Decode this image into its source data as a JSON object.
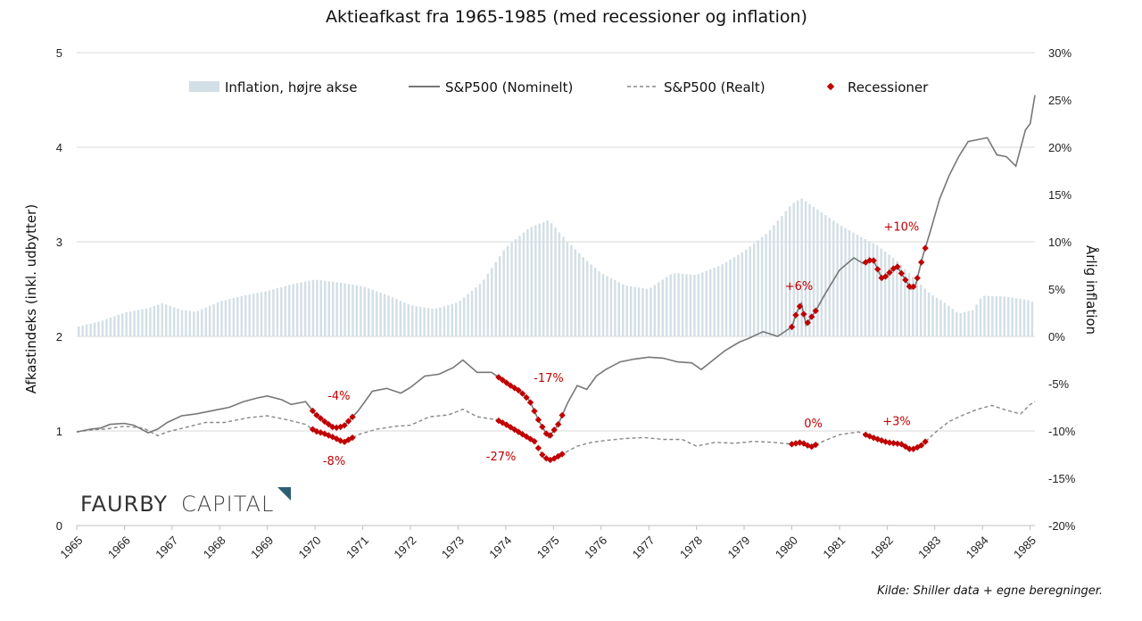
{
  "chart_data": {
    "type": "line",
    "title": "Aktieafkast fra 1965-1985 (med recessioner og inflation)",
    "ylabel_left": "Afkastindeks (inkl. udbytter)",
    "ylabel_right": "Årlig inflation",
    "ylim_left": [
      0,
      5
    ],
    "ylim_right": [
      -20,
      30
    ],
    "xlim": [
      1965,
      1985.1
    ],
    "x_ticks": [
      "1965",
      "1966",
      "1967",
      "1968",
      "1969",
      "1970",
      "1971",
      "1972",
      "1973",
      "1974",
      "1975",
      "1976",
      "1977",
      "1978",
      "1979",
      "1980",
      "1981",
      "1982",
      "1983",
      "1984",
      "1985"
    ],
    "y_left_ticks": [
      "0",
      "1",
      "2",
      "3",
      "4",
      "5"
    ],
    "y_right_ticks": [
      "-20%",
      "-15%",
      "-10%",
      "-5%",
      "0%",
      "5%",
      "10%",
      "15%",
      "20%",
      "25%",
      "30%"
    ],
    "grid": "horizontal",
    "legend_position": "top",
    "legend": [
      {
        "label": "Inflation, højre akse",
        "kind": "bar"
      },
      {
        "label": "S&P500 (Nominelt)",
        "kind": "line"
      },
      {
        "label": "S&P500 (Realt)",
        "kind": "dashed"
      },
      {
        "label": "Recessioner",
        "kind": "marker"
      }
    ],
    "colors": {
      "inflation": "#d3dfe6",
      "nominal": "#777777",
      "real": "#888888",
      "recession": "#c00000"
    },
    "inflation": {
      "x": [
        1965.0,
        1965.5,
        1966.0,
        1966.5,
        1966.8,
        1967.2,
        1967.5,
        1968.0,
        1968.5,
        1969.0,
        1969.5,
        1970.0,
        1970.5,
        1971.0,
        1971.5,
        1972.0,
        1972.5,
        1973.0,
        1973.5,
        1974.0,
        1974.5,
        1974.9,
        1975.3,
        1975.7,
        1976.0,
        1976.5,
        1977.0,
        1977.5,
        1978.0,
        1978.5,
        1979.0,
        1979.5,
        1980.0,
        1980.2,
        1980.6,
        1981.0,
        1981.5,
        1981.8,
        1982.2,
        1982.5,
        1982.9,
        1983.2,
        1983.5,
        1983.8,
        1984.0,
        1984.5,
        1985.0,
        1985.1
      ],
      "values": [
        1.0,
        1.6,
        2.5,
        3.0,
        3.5,
        2.8,
        2.6,
        3.7,
        4.3,
        4.8,
        5.5,
        6.0,
        5.7,
        5.3,
        4.4,
        3.3,
        2.9,
        3.6,
        5.7,
        9.4,
        11.5,
        12.3,
        10.0,
        8.0,
        6.7,
        5.4,
        5.0,
        6.7,
        6.5,
        7.5,
        9.0,
        11.0,
        14.0,
        14.6,
        13.2,
        11.8,
        10.4,
        9.6,
        8.0,
        6.5,
        4.5,
        3.6,
        2.4,
        2.8,
        4.3,
        4.2,
        3.8,
        3.5
      ]
    },
    "nominal": {
      "x": [
        1965.0,
        1965.3,
        1965.5,
        1965.7,
        1966.0,
        1966.2,
        1966.5,
        1966.7,
        1966.9,
        1967.2,
        1967.5,
        1967.9,
        1968.2,
        1968.5,
        1968.8,
        1969.0,
        1969.3,
        1969.5,
        1969.8,
        1970.0,
        1970.2,
        1970.4,
        1970.6,
        1970.9,
        1971.2,
        1971.5,
        1971.8,
        1972.0,
        1972.3,
        1972.6,
        1972.9,
        1973.1,
        1973.4,
        1973.7,
        1973.9,
        1974.1,
        1974.3,
        1974.5,
        1974.7,
        1974.9,
        1975.1,
        1975.3,
        1975.5,
        1975.7,
        1975.9,
        1976.1,
        1976.4,
        1976.7,
        1977.0,
        1977.3,
        1977.6,
        1977.9,
        1978.1,
        1978.3,
        1978.6,
        1978.9,
        1979.1,
        1979.4,
        1979.7,
        1980.0,
        1980.1,
        1980.2,
        1980.3,
        1980.5,
        1980.7,
        1981.0,
        1981.3,
        1981.5,
        1981.7,
        1981.9,
        1982.2,
        1982.5,
        1982.6,
        1982.75,
        1982.9,
        1983.1,
        1983.3,
        1983.5,
        1983.7,
        1983.9,
        1984.1,
        1984.3,
        1984.5,
        1984.7,
        1984.9,
        1985.0,
        1985.1
      ],
      "values": [
        0.99,
        1.02,
        1.03,
        1.07,
        1.08,
        1.06,
        0.98,
        1.02,
        1.09,
        1.16,
        1.18,
        1.22,
        1.25,
        1.31,
        1.35,
        1.37,
        1.33,
        1.28,
        1.31,
        1.18,
        1.1,
        1.03,
        1.05,
        1.21,
        1.42,
        1.45,
        1.4,
        1.46,
        1.58,
        1.6,
        1.67,
        1.75,
        1.62,
        1.62,
        1.55,
        1.48,
        1.42,
        1.32,
        1.1,
        0.93,
        1.07,
        1.3,
        1.48,
        1.44,
        1.58,
        1.65,
        1.73,
        1.76,
        1.78,
        1.77,
        1.73,
        1.72,
        1.65,
        1.73,
        1.85,
        1.94,
        1.98,
        2.05,
        2.0,
        2.1,
        2.25,
        2.35,
        2.12,
        2.27,
        2.45,
        2.7,
        2.83,
        2.77,
        2.82,
        2.6,
        2.75,
        2.5,
        2.55,
        2.85,
        3.1,
        3.45,
        3.7,
        3.9,
        4.06,
        4.08,
        4.1,
        3.92,
        3.9,
        3.8,
        4.18,
        4.25,
        4.55
      ]
    },
    "real": {
      "x": [
        1965.0,
        1965.3,
        1965.6,
        1966.0,
        1966.4,
        1966.7,
        1966.9,
        1967.3,
        1967.7,
        1968.1,
        1968.6,
        1969.0,
        1969.4,
        1969.8,
        1970.0,
        1970.2,
        1970.4,
        1970.6,
        1970.9,
        1971.3,
        1971.7,
        1972.0,
        1972.4,
        1972.8,
        1973.1,
        1973.4,
        1973.8,
        1974.0,
        1974.3,
        1974.6,
        1974.8,
        1974.95,
        1975.2,
        1975.5,
        1975.8,
        1976.1,
        1976.5,
        1976.9,
        1977.3,
        1977.7,
        1978.0,
        1978.4,
        1978.8,
        1979.2,
        1979.6,
        1980.0,
        1980.2,
        1980.4,
        1980.7,
        1981.0,
        1981.4,
        1981.7,
        1982.0,
        1982.3,
        1982.5,
        1982.7,
        1983.0,
        1983.3,
        1983.6,
        1983.9,
        1984.2,
        1984.5,
        1984.8,
        1985.0,
        1985.1
      ],
      "values": [
        0.99,
        1.01,
        1.02,
        1.05,
        1.03,
        0.95,
        0.99,
        1.04,
        1.09,
        1.09,
        1.14,
        1.16,
        1.12,
        1.07,
        1.0,
        0.97,
        0.93,
        0.88,
        0.96,
        1.02,
        1.05,
        1.06,
        1.15,
        1.17,
        1.23,
        1.15,
        1.12,
        1.07,
        0.98,
        0.89,
        0.72,
        0.69,
        0.76,
        0.84,
        0.88,
        0.9,
        0.92,
        0.93,
        0.91,
        0.91,
        0.84,
        0.88,
        0.87,
        0.89,
        0.88,
        0.86,
        0.88,
        0.83,
        0.9,
        0.96,
        0.99,
        0.93,
        0.88,
        0.86,
        0.8,
        0.84,
        0.98,
        1.1,
        1.17,
        1.23,
        1.27,
        1.22,
        1.18,
        1.28,
        1.31
      ]
    },
    "recession_periods": [
      [
        1969.95,
        1970.85
      ],
      [
        1973.85,
        1975.2
      ],
      [
        1980.0,
        1980.55
      ],
      [
        1981.55,
        1982.85
      ]
    ],
    "annotations": [
      {
        "text": "-4%",
        "x": 1970.5,
        "y": 1.33
      },
      {
        "text": "-8%",
        "x": 1970.4,
        "y": 0.64
      },
      {
        "text": "-17%",
        "x": 1974.9,
        "y": 1.52
      },
      {
        "text": "-27%",
        "x": 1973.9,
        "y": 0.69
      },
      {
        "text": "+6%",
        "x": 1980.15,
        "y": 2.49
      },
      {
        "text": "0%",
        "x": 1980.45,
        "y": 1.04
      },
      {
        "text": "+10%",
        "x": 1982.3,
        "y": 3.12
      },
      {
        "text": "+3%",
        "x": 1982.2,
        "y": 1.06
      }
    ]
  },
  "logo": {
    "part1": "FAURBY",
    "part2": "CAPITAL"
  },
  "source": "Kilde: Shiller data + egne beregninger."
}
